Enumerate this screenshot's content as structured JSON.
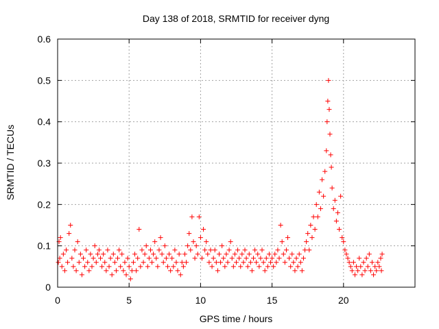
{
  "chart_data": {
    "type": "scatter",
    "title": "Day 138 of 2018, SRMTID for receiver dyng",
    "xlabel": "GPS time / hours",
    "ylabel": "SRMTID / TECUs",
    "xlim": [
      0,
      25
    ],
    "ylim": [
      0,
      0.6
    ],
    "xticks": [
      0,
      5,
      10,
      15,
      20
    ],
    "xtick_labels": [
      "0",
      "5",
      "10",
      "15",
      "20"
    ],
    "yticks": [
      0,
      0.1,
      0.2,
      0.3,
      0.4,
      0.5,
      0.6
    ],
    "ytick_labels": [
      "0",
      "0.1",
      "0.2",
      "0.3",
      "0.4",
      "0.5",
      "0.6"
    ],
    "grid": true,
    "marker": "+",
    "color": "#ff0000",
    "series": [
      {
        "name": "SRMTID",
        "points": [
          [
            0.05,
            0.06
          ],
          [
            0.1,
            0.11
          ],
          [
            0.15,
            0.07
          ],
          [
            0.2,
            0.12
          ],
          [
            0.3,
            0.05
          ],
          [
            0.4,
            0.08
          ],
          [
            0.5,
            0.04
          ],
          [
            0.6,
            0.09
          ],
          [
            0.7,
            0.06
          ],
          [
            0.8,
            0.13
          ],
          [
            0.9,
            0.15
          ],
          [
            1.0,
            0.07
          ],
          [
            1.1,
            0.05
          ],
          [
            1.2,
            0.09
          ],
          [
            1.3,
            0.04
          ],
          [
            1.4,
            0.11
          ],
          [
            1.5,
            0.06
          ],
          [
            1.6,
            0.08
          ],
          [
            1.7,
            0.03
          ],
          [
            1.8,
            0.07
          ],
          [
            1.9,
            0.05
          ],
          [
            2.0,
            0.09
          ],
          [
            2.1,
            0.06
          ],
          [
            2.2,
            0.04
          ],
          [
            2.3,
            0.08
          ],
          [
            2.4,
            0.05
          ],
          [
            2.5,
            0.07
          ],
          [
            2.6,
            0.1
          ],
          [
            2.7,
            0.06
          ],
          [
            2.8,
            0.08
          ],
          [
            2.9,
            0.09
          ],
          [
            3.0,
            0.07
          ],
          [
            3.1,
            0.05
          ],
          [
            3.2,
            0.08
          ],
          [
            3.3,
            0.06
          ],
          [
            3.4,
            0.04
          ],
          [
            3.5,
            0.09
          ],
          [
            3.6,
            0.05
          ],
          [
            3.7,
            0.07
          ],
          [
            3.8,
            0.03
          ],
          [
            3.9,
            0.08
          ],
          [
            4.0,
            0.06
          ],
          [
            4.1,
            0.04
          ],
          [
            4.2,
            0.07
          ],
          [
            4.3,
            0.09
          ],
          [
            4.4,
            0.05
          ],
          [
            4.5,
            0.08
          ],
          [
            4.6,
            0.04
          ],
          [
            4.7,
            0.06
          ],
          [
            4.8,
            0.03
          ],
          [
            4.9,
            0.07
          ],
          [
            5.0,
            0.05
          ],
          [
            5.1,
            0.02
          ],
          [
            5.2,
            0.04
          ],
          [
            5.3,
            0.06
          ],
          [
            5.4,
            0.08
          ],
          [
            5.5,
            0.04
          ],
          [
            5.6,
            0.07
          ],
          [
            5.7,
            0.14
          ],
          [
            5.8,
            0.05
          ],
          [
            5.9,
            0.09
          ],
          [
            6.0,
            0.06
          ],
          [
            6.1,
            0.08
          ],
          [
            6.2,
            0.1
          ],
          [
            6.3,
            0.05
          ],
          [
            6.4,
            0.07
          ],
          [
            6.5,
            0.09
          ],
          [
            6.6,
            0.06
          ],
          [
            6.7,
            0.08
          ],
          [
            6.8,
            0.11
          ],
          [
            6.9,
            0.07
          ],
          [
            7.0,
            0.05
          ],
          [
            7.1,
            0.09
          ],
          [
            7.2,
            0.12
          ],
          [
            7.3,
            0.08
          ],
          [
            7.4,
            0.06
          ],
          [
            7.5,
            0.1
          ],
          [
            7.6,
            0.07
          ],
          [
            7.7,
            0.05
          ],
          [
            7.8,
            0.08
          ],
          [
            7.9,
            0.04
          ],
          [
            8.0,
            0.07
          ],
          [
            8.1,
            0.05
          ],
          [
            8.2,
            0.09
          ],
          [
            8.3,
            0.06
          ],
          [
            8.4,
            0.04
          ],
          [
            8.5,
            0.08
          ],
          [
            8.6,
            0.03
          ],
          [
            8.7,
            0.06
          ],
          [
            8.8,
            0.05
          ],
          [
            8.9,
            0.08
          ],
          [
            9.0,
            0.06
          ],
          [
            9.1,
            0.1
          ],
          [
            9.2,
            0.13
          ],
          [
            9.3,
            0.09
          ],
          [
            9.4,
            0.17
          ],
          [
            9.5,
            0.11
          ],
          [
            9.6,
            0.07
          ],
          [
            9.7,
            0.1
          ],
          [
            9.8,
            0.08
          ],
          [
            9.9,
            0.17
          ],
          [
            10.0,
            0.12
          ],
          [
            10.1,
            0.07
          ],
          [
            10.2,
            0.14
          ],
          [
            10.3,
            0.09
          ],
          [
            10.4,
            0.11
          ],
          [
            10.5,
            0.08
          ],
          [
            10.6,
            0.06
          ],
          [
            10.7,
            0.09
          ],
          [
            10.8,
            0.05
          ],
          [
            10.9,
            0.07
          ],
          [
            11.0,
            0.09
          ],
          [
            11.1,
            0.06
          ],
          [
            11.2,
            0.04
          ],
          [
            11.3,
            0.08
          ],
          [
            11.4,
            0.06
          ],
          [
            11.5,
            0.1
          ],
          [
            11.6,
            0.07
          ],
          [
            11.7,
            0.05
          ],
          [
            11.8,
            0.08
          ],
          [
            11.9,
            0.06
          ],
          [
            12.0,
            0.09
          ],
          [
            12.1,
            0.11
          ],
          [
            12.2,
            0.07
          ],
          [
            12.3,
            0.05
          ],
          [
            12.4,
            0.08
          ],
          [
            12.5,
            0.06
          ],
          [
            12.6,
            0.09
          ],
          [
            12.7,
            0.07
          ],
          [
            12.8,
            0.05
          ],
          [
            12.9,
            0.08
          ],
          [
            13.0,
            0.06
          ],
          [
            13.1,
            0.09
          ],
          [
            13.2,
            0.07
          ],
          [
            13.3,
            0.05
          ],
          [
            13.4,
            0.08
          ],
          [
            13.5,
            0.06
          ],
          [
            13.6,
            0.04
          ],
          [
            13.7,
            0.07
          ],
          [
            13.8,
            0.09
          ],
          [
            13.9,
            0.06
          ],
          [
            14.0,
            0.08
          ],
          [
            14.1,
            0.05
          ],
          [
            14.2,
            0.07
          ],
          [
            14.3,
            0.09
          ],
          [
            14.4,
            0.06
          ],
          [
            14.5,
            0.04
          ],
          [
            14.6,
            0.07
          ],
          [
            14.7,
            0.05
          ],
          [
            14.8,
            0.08
          ],
          [
            14.9,
            0.06
          ],
          [
            15.0,
            0.07
          ],
          [
            15.1,
            0.05
          ],
          [
            15.2,
            0.08
          ],
          [
            15.3,
            0.06
          ],
          [
            15.4,
            0.09
          ],
          [
            15.5,
            0.07
          ],
          [
            15.6,
            0.15
          ],
          [
            15.7,
            0.11
          ],
          [
            15.8,
            0.08
          ],
          [
            15.9,
            0.06
          ],
          [
            16.0,
            0.09
          ],
          [
            16.1,
            0.12
          ],
          [
            16.2,
            0.07
          ],
          [
            16.3,
            0.05
          ],
          [
            16.4,
            0.08
          ],
          [
            16.5,
            0.06
          ],
          [
            16.6,
            0.04
          ],
          [
            16.7,
            0.07
          ],
          [
            16.8,
            0.05
          ],
          [
            16.9,
            0.08
          ],
          [
            17.0,
            0.06
          ],
          [
            17.1,
            0.04
          ],
          [
            17.2,
            0.07
          ],
          [
            17.3,
            0.09
          ],
          [
            17.4,
            0.11
          ],
          [
            17.5,
            0.13
          ],
          [
            17.6,
            0.09
          ],
          [
            17.7,
            0.15
          ],
          [
            17.8,
            0.12
          ],
          [
            17.9,
            0.17
          ],
          [
            18.0,
            0.14
          ],
          [
            18.1,
            0.2
          ],
          [
            18.2,
            0.17
          ],
          [
            18.3,
            0.23
          ],
          [
            18.4,
            0.19
          ],
          [
            18.5,
            0.26
          ],
          [
            18.6,
            0.22
          ],
          [
            18.7,
            0.28
          ],
          [
            18.8,
            0.33
          ],
          [
            18.85,
            0.4
          ],
          [
            18.9,
            0.45
          ],
          [
            18.95,
            0.5
          ],
          [
            19.0,
            0.43
          ],
          [
            19.05,
            0.37
          ],
          [
            19.1,
            0.32
          ],
          [
            19.15,
            0.29
          ],
          [
            19.2,
            0.24
          ],
          [
            19.3,
            0.19
          ],
          [
            19.4,
            0.21
          ],
          [
            19.5,
            0.16
          ],
          [
            19.6,
            0.18
          ],
          [
            19.7,
            0.14
          ],
          [
            19.8,
            0.22
          ],
          [
            19.9,
            0.12
          ],
          [
            20.0,
            0.11
          ],
          [
            20.1,
            0.09
          ],
          [
            20.2,
            0.08
          ],
          [
            20.3,
            0.07
          ],
          [
            20.4,
            0.06
          ],
          [
            20.5,
            0.05
          ],
          [
            20.6,
            0.04
          ],
          [
            20.7,
            0.06
          ],
          [
            20.8,
            0.03
          ],
          [
            20.9,
            0.05
          ],
          [
            21.0,
            0.04
          ],
          [
            21.1,
            0.07
          ],
          [
            21.2,
            0.05
          ],
          [
            21.3,
            0.03
          ],
          [
            21.4,
            0.06
          ],
          [
            21.5,
            0.04
          ],
          [
            21.6,
            0.07
          ],
          [
            21.7,
            0.05
          ],
          [
            21.8,
            0.08
          ],
          [
            21.9,
            0.04
          ],
          [
            22.0,
            0.06
          ],
          [
            22.1,
            0.03
          ],
          [
            22.2,
            0.05
          ],
          [
            22.3,
            0.04
          ],
          [
            22.4,
            0.06
          ],
          [
            22.5,
            0.05
          ],
          [
            22.6,
            0.07
          ],
          [
            22.65,
            0.04
          ],
          [
            22.7,
            0.08
          ]
        ]
      }
    ]
  }
}
